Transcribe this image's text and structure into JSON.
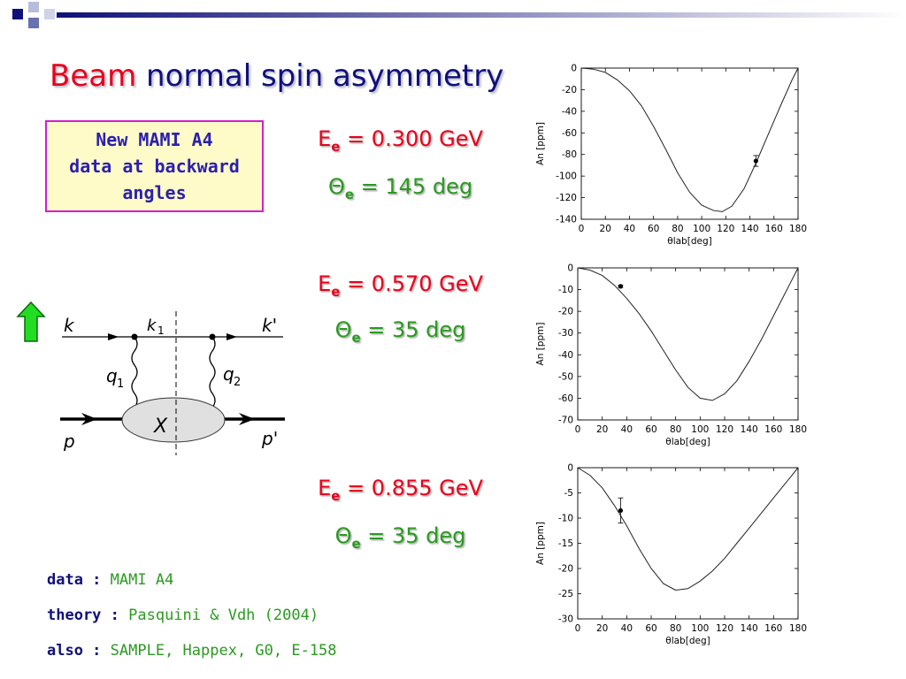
{
  "title": {
    "word1": "Beam",
    "word2": "normal spin asymmetry"
  },
  "note_box": "New MAMI A4\ndata at backward\nangles",
  "params": [
    {
      "energy_lhs": "E",
      "energy_sub": "e",
      "energy_rhs": " = 0.300  GeV",
      "angle_lhs": "Θ",
      "angle_sub": "e",
      "angle_rhs": " = 145 deg"
    },
    {
      "energy_lhs": "E",
      "energy_sub": "e",
      "energy_rhs": " = 0.570  GeV",
      "angle_lhs": "Θ",
      "angle_sub": "e",
      "angle_rhs": " = 35 deg"
    },
    {
      "energy_lhs": "E",
      "energy_sub": "e",
      "energy_rhs": " = 0.855  GeV",
      "angle_lhs": "Θ",
      "angle_sub": "e",
      "angle_rhs": " = 35 deg"
    }
  ],
  "footer": [
    {
      "label": "data : ",
      "value": "MAMI A4"
    },
    {
      "label": "theory : ",
      "value": "Pasquini &  Vdh (2004)"
    },
    {
      "label": "also : ",
      "value": "SAMPLE, Happex, G0, E-158"
    }
  ],
  "diagram": {
    "labels": {
      "k": "k",
      "k1": "k",
      "k1_sub": "1",
      "kprime": "k'",
      "q1": "q",
      "q1_sub": "1",
      "q2": "q",
      "q2_sub": "2",
      "X": "X",
      "p": "p",
      "pprime": "p'"
    },
    "arrow_color": "#22dd22"
  },
  "colors": {
    "title_red": "#e8001c",
    "title_blue": "#10107a",
    "green": "#2a9a20",
    "box_fill": "#fffbc8",
    "box_border": "#d01fd0"
  },
  "chart_data": [
    {
      "type": "line",
      "title": "",
      "xlabel": "θlab[deg]",
      "ylabel": "An [ppm]",
      "xlim": [
        0,
        180
      ],
      "ylim": [
        -140,
        0
      ],
      "xticks": [
        0,
        20,
        40,
        60,
        80,
        100,
        120,
        140,
        160,
        180
      ],
      "yticks": [
        0,
        -20,
        -40,
        -60,
        -80,
        -100,
        -120,
        -140
      ],
      "series": [
        {
          "x": [
            0,
            10,
            20,
            30,
            40,
            50,
            60,
            70,
            80,
            90,
            100,
            110,
            117,
            125,
            135,
            145,
            155,
            165,
            175,
            180
          ],
          "values": [
            0,
            -1,
            -4,
            -11,
            -21,
            -35,
            -54,
            -75,
            -97,
            -115,
            -127,
            -132,
            -133,
            -128,
            -112,
            -88,
            -62,
            -36,
            -11,
            0
          ]
        }
      ],
      "points": [
        {
          "x": 145,
          "y": -86,
          "err": 5
        }
      ]
    },
    {
      "type": "line",
      "title": "",
      "xlabel": "θlab[deg]",
      "ylabel": "An [ppm]",
      "xlim": [
        0,
        180
      ],
      "ylim": [
        -70,
        0
      ],
      "xticks": [
        0,
        20,
        40,
        60,
        80,
        100,
        120,
        140,
        160,
        180
      ],
      "yticks": [
        0,
        -10,
        -20,
        -30,
        -40,
        -50,
        -60,
        -70
      ],
      "series": [
        {
          "x": [
            0,
            10,
            20,
            30,
            40,
            50,
            60,
            70,
            80,
            90,
            100,
            110,
            120,
            130,
            140,
            150,
            160,
            170,
            180
          ],
          "values": [
            0,
            -1,
            -3.5,
            -8,
            -14,
            -21,
            -29,
            -38,
            -47,
            -55,
            -60,
            -61,
            -58,
            -52,
            -43,
            -33,
            -22,
            -11,
            0
          ]
        }
      ],
      "points": [
        {
          "x": 35,
          "y": -8.5,
          "err": 0.5
        }
      ]
    },
    {
      "type": "line",
      "title": "",
      "xlabel": "θlab[deg]",
      "ylabel": "An [ppm]",
      "xlim": [
        0,
        180
      ],
      "ylim": [
        -30,
        0
      ],
      "xticks": [
        0,
        20,
        40,
        60,
        80,
        100,
        120,
        140,
        160,
        180
      ],
      "yticks": [
        0,
        -5,
        -10,
        -15,
        -20,
        -25,
        -30
      ],
      "series": [
        {
          "x": [
            0,
            10,
            20,
            30,
            40,
            50,
            60,
            70,
            80,
            90,
            100,
            110,
            120,
            130,
            140,
            150,
            160,
            170,
            180
          ],
          "values": [
            0,
            -1.5,
            -4,
            -7.5,
            -11.5,
            -16,
            -20,
            -23,
            -24.3,
            -24,
            -22.5,
            -20.5,
            -18,
            -15,
            -12,
            -9,
            -6,
            -3,
            0
          ]
        }
      ],
      "points": [
        {
          "x": 35,
          "y": -8.5,
          "err": 2.5
        }
      ]
    }
  ]
}
